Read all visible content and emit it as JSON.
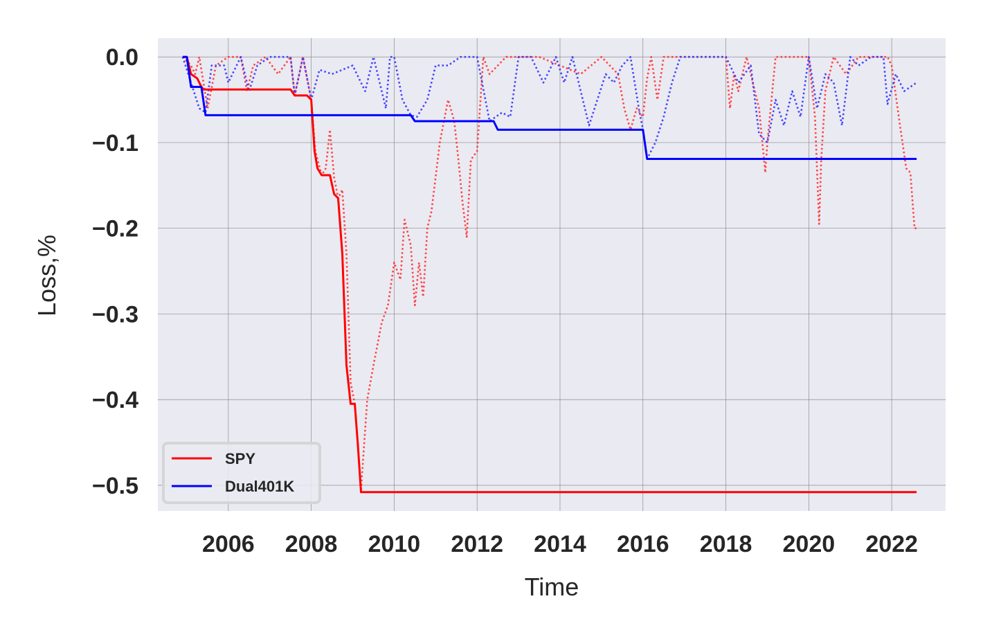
{
  "chart_data": {
    "type": "line",
    "title": "",
    "xlabel": "Time",
    "ylabel": "Loss,%",
    "xlim": [
      2004.3,
      2023.3
    ],
    "ylim": [
      -0.53,
      0.022
    ],
    "x_ticks": [
      2006,
      2008,
      2010,
      2012,
      2014,
      2016,
      2018,
      2020,
      2022
    ],
    "y_ticks": [
      0.0,
      -0.1,
      -0.2,
      -0.3,
      -0.4,
      -0.5
    ],
    "y_tick_labels": [
      "0.0",
      "−0.1",
      "−0.2",
      "−0.3",
      "−0.4",
      "−0.5"
    ],
    "grid": true,
    "legend_position": "lower-left",
    "series": [
      {
        "name": "SPY",
        "style": "solid",
        "color": "#ff0000",
        "x": [
          2004.9,
          2005.0,
          2005.1,
          2005.25,
          2005.35,
          2005.4,
          2007.5,
          2007.6,
          2007.9,
          2008.0,
          2008.08,
          2008.15,
          2008.25,
          2008.45,
          2008.55,
          2008.65,
          2008.75,
          2008.85,
          2008.95,
          2009.05,
          2009.12,
          2009.2,
          2022.6
        ],
        "values": [
          0.0,
          0.0,
          -0.02,
          -0.025,
          -0.035,
          -0.038,
          -0.038,
          -0.045,
          -0.045,
          -0.05,
          -0.11,
          -0.13,
          -0.138,
          -0.138,
          -0.16,
          -0.165,
          -0.23,
          -0.36,
          -0.405,
          -0.405,
          -0.45,
          -0.508,
          -0.508
        ]
      },
      {
        "name": "Dual401K",
        "style": "solid",
        "color": "#0000ff",
        "x": [
          2004.9,
          2005.0,
          2005.1,
          2005.35,
          2005.45,
          2010.4,
          2010.5,
          2012.4,
          2012.5,
          2016.0,
          2016.1,
          2022.6
        ],
        "values": [
          0.0,
          0.0,
          -0.035,
          -0.035,
          -0.068,
          -0.068,
          -0.075,
          -0.075,
          -0.085,
          -0.085,
          -0.119,
          -0.119
        ]
      },
      {
        "name": "",
        "style": "dotted",
        "color": "#ff3333",
        "x": [
          2004.9,
          2005.1,
          2005.2,
          2005.3,
          2005.5,
          2005.7,
          2006.0,
          2006.3,
          2006.45,
          2006.6,
          2006.9,
          2007.2,
          2007.5,
          2007.6,
          2007.8,
          2008.0,
          2008.1,
          2008.25,
          2008.35,
          2008.45,
          2008.55,
          2008.65,
          2008.75,
          2008.85,
          2008.95,
          2009.05,
          2009.12,
          2009.2,
          2009.35,
          2009.5,
          2009.7,
          2009.85,
          2010.0,
          2010.15,
          2010.25,
          2010.4,
          2010.5,
          2010.6,
          2010.7,
          2010.8,
          2010.9,
          2011.1,
          2011.3,
          2011.45,
          2011.55,
          2011.65,
          2011.75,
          2011.85,
          2012.0,
          2012.15,
          2012.3,
          2012.5,
          2012.7,
          2013.0,
          2013.5,
          2014.0,
          2014.5,
          2015.0,
          2015.4,
          2015.55,
          2015.7,
          2015.85,
          2016.0,
          2016.1,
          2016.2,
          2016.35,
          2016.5,
          2017.0,
          2017.5,
          2018.0,
          2018.1,
          2018.2,
          2018.3,
          2018.5,
          2018.8,
          2018.95,
          2019.0,
          2019.2,
          2019.5,
          2019.8,
          2020.0,
          2020.15,
          2020.25,
          2020.3,
          2020.4,
          2020.6,
          2020.9,
          2021.2,
          2021.6,
          2021.9,
          2022.0,
          2022.2,
          2022.35,
          2022.45,
          2022.55,
          2022.6
        ],
        "values": [
          0.0,
          -0.01,
          -0.02,
          0.0,
          -0.06,
          -0.01,
          0.0,
          0.0,
          -0.04,
          -0.01,
          0.0,
          -0.02,
          0.0,
          -0.045,
          0.0,
          -0.05,
          -0.11,
          -0.138,
          -0.13,
          -0.085,
          -0.14,
          -0.165,
          -0.155,
          -0.23,
          -0.38,
          -0.405,
          -0.45,
          -0.505,
          -0.4,
          -0.36,
          -0.31,
          -0.29,
          -0.24,
          -0.26,
          -0.19,
          -0.22,
          -0.29,
          -0.24,
          -0.28,
          -0.2,
          -0.18,
          -0.1,
          -0.05,
          -0.075,
          -0.12,
          -0.17,
          -0.21,
          -0.12,
          -0.11,
          0.0,
          -0.02,
          -0.01,
          0.0,
          0.0,
          0.0,
          -0.01,
          -0.02,
          0.0,
          -0.02,
          -0.06,
          -0.085,
          -0.06,
          -0.07,
          -0.025,
          0.0,
          -0.05,
          0.0,
          0.0,
          0.0,
          0.0,
          -0.06,
          -0.02,
          -0.04,
          0.0,
          -0.06,
          -0.135,
          -0.1,
          0.0,
          0.0,
          0.0,
          0.0,
          -0.07,
          -0.195,
          -0.12,
          -0.04,
          0.0,
          -0.02,
          0.0,
          0.0,
          0.0,
          -0.01,
          -0.08,
          -0.13,
          -0.135,
          -0.2,
          -0.2
        ]
      },
      {
        "name": "",
        "style": "dotted",
        "color": "#3333ff",
        "x": [
          2004.9,
          2005.1,
          2005.3,
          2005.45,
          2005.6,
          2005.9,
          2006.0,
          2006.3,
          2006.5,
          2006.7,
          2007.0,
          2007.5,
          2007.6,
          2007.8,
          2008.0,
          2008.2,
          2008.5,
          2009.0,
          2009.3,
          2009.5,
          2009.8,
          2009.9,
          2010.0,
          2010.2,
          2010.4,
          2010.55,
          2010.8,
          2011.0,
          2011.3,
          2011.6,
          2012.0,
          2012.3,
          2012.45,
          2012.6,
          2012.8,
          2013.0,
          2013.3,
          2013.6,
          2013.9,
          2014.1,
          2014.3,
          2014.5,
          2014.7,
          2014.9,
          2015.1,
          2015.3,
          2015.5,
          2015.7,
          2015.9,
          2016.0,
          2016.1,
          2016.3,
          2016.5,
          2016.7,
          2016.9,
          2017.1,
          2017.3,
          2017.6,
          2018.0,
          2018.3,
          2018.6,
          2018.8,
          2019.0,
          2019.2,
          2019.4,
          2019.6,
          2019.8,
          2020.0,
          2020.2,
          2020.4,
          2020.6,
          2020.8,
          2021.0,
          2021.2,
          2021.5,
          2021.8,
          2021.9,
          2022.1,
          2022.3,
          2022.6
        ],
        "values": [
          0.0,
          -0.03,
          -0.06,
          -0.065,
          -0.01,
          -0.01,
          -0.03,
          0.0,
          -0.04,
          -0.01,
          0.0,
          0.0,
          -0.045,
          0.0,
          -0.05,
          -0.015,
          -0.02,
          -0.01,
          -0.04,
          0.0,
          -0.06,
          0.0,
          0.0,
          -0.05,
          -0.068,
          -0.07,
          -0.05,
          -0.01,
          -0.01,
          0.0,
          0.0,
          -0.075,
          -0.07,
          -0.065,
          -0.07,
          0.0,
          0.0,
          -0.03,
          0.0,
          -0.03,
          0.0,
          -0.04,
          -0.08,
          -0.05,
          -0.02,
          -0.03,
          -0.01,
          0.0,
          -0.06,
          -0.085,
          -0.119,
          -0.1,
          -0.07,
          -0.03,
          0.0,
          0.0,
          0.0,
          0.0,
          0.0,
          -0.03,
          -0.01,
          -0.09,
          -0.1,
          -0.05,
          -0.08,
          -0.04,
          -0.07,
          0.0,
          -0.06,
          -0.02,
          -0.03,
          -0.08,
          0.0,
          -0.01,
          0.0,
          0.0,
          -0.055,
          -0.02,
          -0.04,
          -0.03
        ]
      }
    ]
  },
  "legend": {
    "items": [
      {
        "label": "SPY",
        "color": "#ff0000"
      },
      {
        "label": "Dual401K",
        "color": "#0000ff"
      }
    ]
  },
  "colors": {
    "plot_background": "#eaeaf2",
    "grid": "#8c8c8c",
    "text": "#262626"
  }
}
